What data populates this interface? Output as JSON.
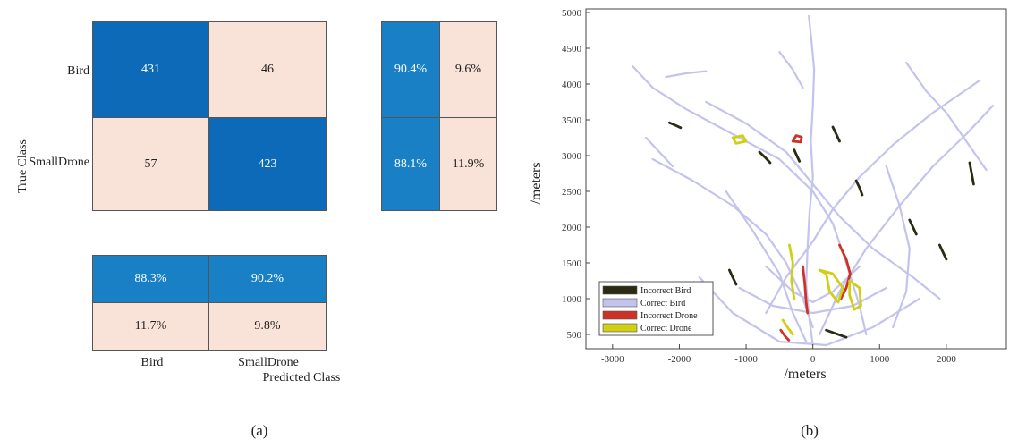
{
  "chart_data": [
    {
      "type": "heatmap",
      "title": "",
      "xlabel": "Predicted Class",
      "ylabel": "True Class",
      "classes": [
        "Bird",
        "SmallDrone"
      ],
      "matrix": [
        [
          431,
          46
        ],
        [
          57,
          423
        ]
      ],
      "row_summary": [
        [
          "90.4%",
          "9.6%"
        ],
        [
          "88.1%",
          "11.9%"
        ]
      ],
      "column_summary": [
        [
          "88.3%",
          "90.2%"
        ],
        [
          "11.7%",
          "9.8%"
        ]
      ],
      "colors": {
        "high": "#0c6ab8",
        "high_summary": "#1a80c6",
        "low": "#f9e3d8"
      },
      "caption": "(a)"
    },
    {
      "type": "scatter",
      "title": "",
      "xlabel": "/meters",
      "ylabel": "/meters",
      "xlim": [
        -3400,
        2900
      ],
      "ylim": [
        300,
        5050
      ],
      "xticks": [
        -3000,
        -2000,
        -1000,
        0,
        1000,
        2000
      ],
      "yticks": [
        500,
        1000,
        1500,
        2000,
        2500,
        3000,
        3500,
        4000,
        4500,
        5000
      ],
      "legend_position": "bottom-left",
      "series": [
        {
          "name": "Incorrect Bird",
          "color": "#2b2b14",
          "tracks": [
            [
              [
                -2150,
                3460
              ],
              [
                -2050,
                3420
              ],
              [
                -1980,
                3390
              ]
            ],
            [
              [
                -800,
                3050
              ],
              [
                -720,
                2980
              ],
              [
                -640,
                2900
              ]
            ],
            [
              [
                -280,
                3080
              ],
              [
                -240,
                3000
              ],
              [
                -200,
                2920
              ]
            ],
            [
              [
                300,
                3400
              ],
              [
                350,
                3300
              ],
              [
                400,
                3200
              ]
            ],
            [
              [
                650,
                2650
              ],
              [
                700,
                2550
              ],
              [
                740,
                2450
              ]
            ],
            [
              [
                1450,
                2100
              ],
              [
                1500,
                2000
              ],
              [
                1550,
                1900
              ]
            ],
            [
              [
                2350,
                2900
              ],
              [
                2380,
                2750
              ],
              [
                2410,
                2600
              ]
            ],
            [
              [
                -1250,
                1400
              ],
              [
                -1200,
                1300
              ],
              [
                -1150,
                1200
              ]
            ],
            [
              [
                1900,
                1750
              ],
              [
                1950,
                1650
              ],
              [
                2000,
                1550
              ]
            ],
            [
              [
                200,
                560
              ],
              [
                350,
                510
              ],
              [
                500,
                460
              ]
            ]
          ]
        },
        {
          "name": "Correct Bird",
          "color": "#c3c3ee",
          "tracks": [
            [
              [
                -2700,
                4250
              ],
              [
                -2400,
                3950
              ],
              [
                -1900,
                3650
              ],
              [
                -1200,
                3300
              ],
              [
                -500,
                2950
              ],
              [
                0,
                2500
              ],
              [
                300,
                2050
              ],
              [
                500,
                1500
              ],
              [
                700,
                900
              ],
              [
                800,
                500
              ]
            ],
            [
              [
                -1600,
                3750
              ],
              [
                -1000,
                3450
              ],
              [
                -400,
                3050
              ],
              [
                0,
                2600
              ],
              [
                400,
                2150
              ],
              [
                900,
                1700
              ],
              [
                1500,
                1300
              ],
              [
                1900,
                1000
              ]
            ],
            [
              [
                -60,
                4950
              ],
              [
                -20,
                4600
              ],
              [
                20,
                4200
              ],
              [
                0,
                3700
              ],
              [
                -30,
                3200
              ],
              [
                0,
                2700
              ],
              [
                -50,
                2200
              ],
              [
                -80,
                1700
              ],
              [
                -100,
                1200
              ],
              [
                -50,
                700
              ],
              [
                0,
                350
              ]
            ],
            [
              [
                2500,
                4050
              ],
              [
                1800,
                3600
              ],
              [
                1200,
                3150
              ],
              [
                700,
                2700
              ],
              [
                300,
                2250
              ],
              [
                0,
                1800
              ],
              [
                -400,
                1300
              ],
              [
                -700,
                800
              ]
            ],
            [
              [
                -2400,
                2950
              ],
              [
                -1800,
                2650
              ],
              [
                -1200,
                2300
              ],
              [
                -700,
                1900
              ],
              [
                -400,
                1500
              ],
              [
                -150,
                1000
              ],
              [
                0,
                600
              ]
            ],
            [
              [
                2700,
                3700
              ],
              [
                2300,
                3300
              ],
              [
                1800,
                2850
              ],
              [
                1300,
                2300
              ],
              [
                800,
                1700
              ],
              [
                400,
                1100
              ],
              [
                100,
                500
              ]
            ],
            [
              [
                -1300,
                2500
              ],
              [
                -900,
                1950
              ],
              [
                -500,
                1350
              ],
              [
                -300,
                800
              ],
              [
                -100,
                400
              ]
            ],
            [
              [
                1100,
                2850
              ],
              [
                1300,
                2300
              ],
              [
                1450,
                1700
              ],
              [
                1400,
                1100
              ],
              [
                1200,
                600
              ]
            ],
            [
              [
                -1100,
                1150
              ],
              [
                -600,
                900
              ],
              [
                0,
                800
              ],
              [
                600,
                900
              ],
              [
                1100,
                1150
              ]
            ],
            [
              [
                -700,
                1450
              ],
              [
                -300,
                1100
              ],
              [
                0,
                950
              ],
              [
                300,
                1100
              ],
              [
                700,
                1450
              ]
            ],
            [
              [
                -1700,
                1300
              ],
              [
                -1200,
                800
              ],
              [
                -500,
                400
              ],
              [
                200,
                350
              ],
              [
                900,
                600
              ],
              [
                1600,
                1000
              ]
            ],
            [
              [
                -2200,
                4100
              ],
              [
                -1900,
                4150
              ],
              [
                -1600,
                4180
              ]
            ],
            [
              [
                1400,
                4300
              ],
              [
                1700,
                3900
              ],
              [
                2000,
                3600
              ],
              [
                2300,
                3200
              ],
              [
                2600,
                2800
              ]
            ],
            [
              [
                -2500,
                3250
              ],
              [
                -2300,
                3050
              ],
              [
                -2100,
                2850
              ]
            ],
            [
              [
                -500,
                4450
              ],
              [
                -300,
                4200
              ],
              [
                -150,
                3950
              ]
            ]
          ]
        },
        {
          "name": "Incorrect Drone",
          "color": "#cc3326",
          "tracks": [
            [
              [
                -300,
                3200
              ],
              [
                -250,
                3280
              ],
              [
                -170,
                3260
              ],
              [
                -180,
                3190
              ],
              [
                -300,
                3200
              ]
            ],
            [
              [
                -150,
                1450
              ],
              [
                -120,
                1200
              ],
              [
                -100,
                950
              ],
              [
                -80,
                800
              ]
            ],
            [
              [
                400,
                1750
              ],
              [
                500,
                1550
              ],
              [
                560,
                1350
              ],
              [
                500,
                1150
              ],
              [
                420,
                1000
              ]
            ],
            [
              [
                -480,
                560
              ],
              [
                -420,
                480
              ],
              [
                -360,
                420
              ]
            ]
          ]
        },
        {
          "name": "Correct Drone",
          "color": "#cfcf14",
          "tracks": [
            [
              [
                -1200,
                3250
              ],
              [
                -1050,
                3280
              ],
              [
                -1000,
                3200
              ],
              [
                -1150,
                3170
              ],
              [
                -1200,
                3250
              ]
            ],
            [
              [
                100,
                1400
              ],
              [
                300,
                1350
              ],
              [
                450,
                1150
              ],
              [
                380,
                950
              ],
              [
                250,
                1100
              ],
              [
                200,
                1350
              ],
              [
                100,
                1400
              ]
            ],
            [
              [
                -350,
                1750
              ],
              [
                -300,
                1500
              ],
              [
                -320,
                1250
              ],
              [
                -280,
                1000
              ]
            ],
            [
              [
                550,
                1250
              ],
              [
                700,
                1150
              ],
              [
                720,
                900
              ],
              [
                620,
                850
              ],
              [
                550,
                1050
              ],
              [
                550,
                1250
              ]
            ],
            [
              [
                -450,
                700
              ],
              [
                -380,
                600
              ],
              [
                -300,
                500
              ]
            ]
          ]
        }
      ],
      "caption": "(b)"
    }
  ]
}
